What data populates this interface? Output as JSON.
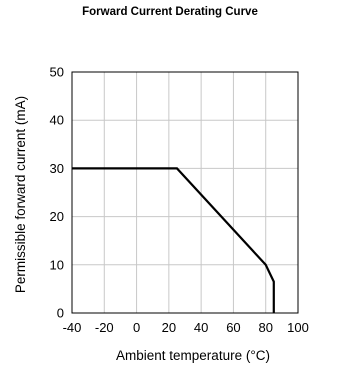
{
  "chart_data": {
    "type": "line",
    "title": "Forward Current Derating  Curve",
    "xlabel": "Ambient temperature (°C)",
    "ylabel": "Permissible forward current (mA)",
    "xlim": [
      -40,
      100
    ],
    "ylim": [
      0,
      50
    ],
    "xticks": [
      -40,
      -20,
      0,
      20,
      40,
      60,
      80,
      100
    ],
    "yticks": [
      0,
      10,
      20,
      30,
      40,
      50
    ],
    "xtick_labels": [
      "-40",
      "-20",
      "0",
      "20",
      "40",
      "60",
      "80",
      "100"
    ],
    "ytick_labels": [
      "0",
      "10",
      "20",
      "30",
      "40",
      "50"
    ],
    "grid": true,
    "series": [
      {
        "x": [
          -40,
          25,
          80,
          85,
          85
        ],
        "y": [
          30,
          30,
          10,
          6.5,
          0
        ]
      }
    ]
  }
}
